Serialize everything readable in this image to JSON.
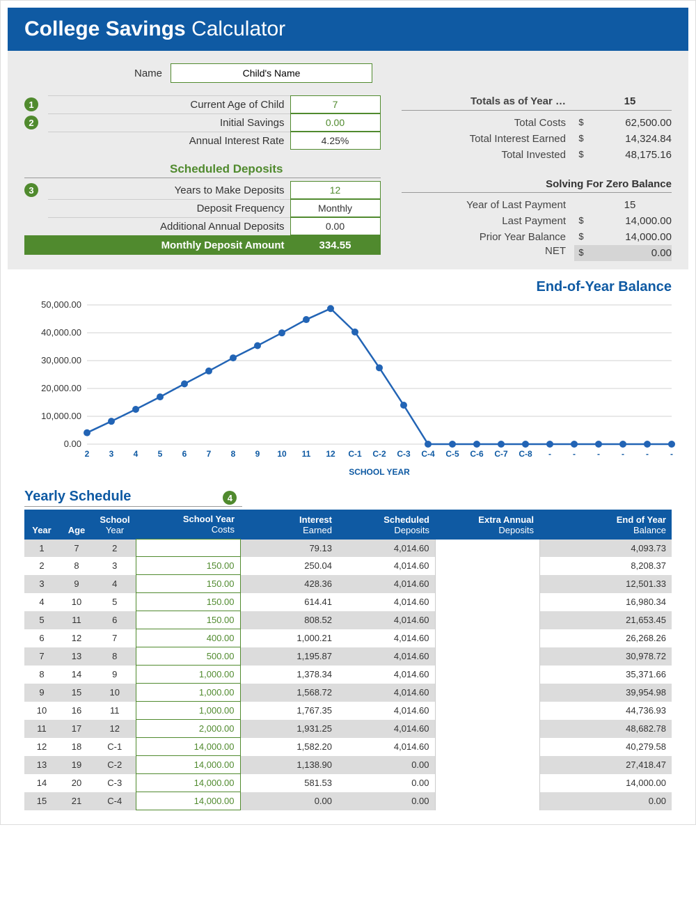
{
  "header": {
    "title_bold": "College Savings",
    "title_light": " Calculator"
  },
  "name": {
    "label": "Name",
    "value": "Child's Name"
  },
  "inputs": {
    "current_age": {
      "badge": "1",
      "label": "Current Age of Child",
      "value": "7"
    },
    "initial": {
      "badge": "2",
      "label": "Initial Savings",
      "value": "0.00"
    },
    "rate": {
      "label": "Annual Interest Rate",
      "value": "4.25%"
    }
  },
  "deposits": {
    "title": "Scheduled Deposits",
    "badge": "3",
    "years": {
      "label": "Years to Make Deposits",
      "value": "12"
    },
    "freq": {
      "label": "Deposit Frequency",
      "value": "Monthly"
    },
    "additional": {
      "label": "Additional Annual Deposits",
      "value": "0.00"
    },
    "monthly": {
      "label": "Monthly Deposit Amount",
      "value": "334.55"
    }
  },
  "totals": {
    "head_label": "Totals as of Year …",
    "head_val": "15",
    "rows": [
      {
        "label": "Total Costs",
        "cur": "$",
        "val": "62,500.00"
      },
      {
        "label": "Total Interest Earned",
        "cur": "$",
        "val": "14,324.84"
      },
      {
        "label": "Total Invested",
        "cur": "$",
        "val": "48,175.16"
      }
    ]
  },
  "solving": {
    "title": "Solving For Zero Balance",
    "rows": [
      {
        "label": "Year of Last Payment",
        "cur": "",
        "val": "15"
      },
      {
        "label": "Last Payment",
        "cur": "$",
        "val": "14,000.00"
      },
      {
        "label": "Prior Year Balance",
        "cur": "$",
        "val": "14,000.00"
      }
    ],
    "net": {
      "label": "NET",
      "cur": "$",
      "val": "0.00"
    }
  },
  "chart": {
    "title": "End-of-Year Balance",
    "xlabel": "SCHOOL YEAR",
    "categories": [
      "2",
      "3",
      "4",
      "5",
      "6",
      "7",
      "8",
      "9",
      "10",
      "11",
      "12",
      "C-1",
      "C-2",
      "C-3",
      "C-4",
      "C-5",
      "C-6",
      "C-7",
      "C-8",
      "-",
      "-",
      "-",
      "-",
      "-",
      "-"
    ],
    "values": [
      4093.73,
      8208.37,
      12501.33,
      16980.34,
      21653.45,
      26268.26,
      30978.72,
      35371.66,
      39954.98,
      44736.93,
      48682.78,
      40279.58,
      27418.47,
      14000.0,
      0,
      0,
      0,
      0,
      0,
      0,
      0,
      0,
      0,
      0,
      0
    ],
    "ylim": [
      0,
      50000
    ],
    "yticks": [
      0,
      10000,
      20000,
      30000,
      40000,
      50000
    ],
    "yticklabels": [
      "0.00",
      "10,000.00",
      "20,000.00",
      "30,000.00",
      "40,000.00",
      "50,000.00"
    ],
    "line_color": "#2264b5",
    "marker_color": "#2264b5",
    "grid_color": "#d0d0d0",
    "xlabel_color": "#0f5aa3"
  },
  "schedule": {
    "title": "Yearly Schedule",
    "badge": "4",
    "columns": [
      {
        "l1": "Year",
        "l2": ""
      },
      {
        "l1": "Age",
        "l2": ""
      },
      {
        "l1": "School",
        "l2": "Year"
      },
      {
        "l1": "School Year",
        "l2": "Costs"
      },
      {
        "l1": "Interest",
        "l2": "Earned"
      },
      {
        "l1": "Scheduled",
        "l2": "Deposits"
      },
      {
        "l1": "Extra Annual",
        "l2": "Deposits"
      },
      {
        "l1": "End of Year",
        "l2": "Balance"
      }
    ],
    "rows": [
      {
        "year": "1",
        "age": "7",
        "sy": "2",
        "cost": "",
        "int": "79.13",
        "sched": "4,014.60",
        "extra": "",
        "bal": "4,093.73"
      },
      {
        "year": "2",
        "age": "8",
        "sy": "3",
        "cost": "150.00",
        "int": "250.04",
        "sched": "4,014.60",
        "extra": "",
        "bal": "8,208.37"
      },
      {
        "year": "3",
        "age": "9",
        "sy": "4",
        "cost": "150.00",
        "int": "428.36",
        "sched": "4,014.60",
        "extra": "",
        "bal": "12,501.33"
      },
      {
        "year": "4",
        "age": "10",
        "sy": "5",
        "cost": "150.00",
        "int": "614.41",
        "sched": "4,014.60",
        "extra": "",
        "bal": "16,980.34"
      },
      {
        "year": "5",
        "age": "11",
        "sy": "6",
        "cost": "150.00",
        "int": "808.52",
        "sched": "4,014.60",
        "extra": "",
        "bal": "21,653.45"
      },
      {
        "year": "6",
        "age": "12",
        "sy": "7",
        "cost": "400.00",
        "int": "1,000.21",
        "sched": "4,014.60",
        "extra": "",
        "bal": "26,268.26"
      },
      {
        "year": "7",
        "age": "13",
        "sy": "8",
        "cost": "500.00",
        "int": "1,195.87",
        "sched": "4,014.60",
        "extra": "",
        "bal": "30,978.72"
      },
      {
        "year": "8",
        "age": "14",
        "sy": "9",
        "cost": "1,000.00",
        "int": "1,378.34",
        "sched": "4,014.60",
        "extra": "",
        "bal": "35,371.66"
      },
      {
        "year": "9",
        "age": "15",
        "sy": "10",
        "cost": "1,000.00",
        "int": "1,568.72",
        "sched": "4,014.60",
        "extra": "",
        "bal": "39,954.98"
      },
      {
        "year": "10",
        "age": "16",
        "sy": "11",
        "cost": "1,000.00",
        "int": "1,767.35",
        "sched": "4,014.60",
        "extra": "",
        "bal": "44,736.93"
      },
      {
        "year": "11",
        "age": "17",
        "sy": "12",
        "cost": "2,000.00",
        "int": "1,931.25",
        "sched": "4,014.60",
        "extra": "",
        "bal": "48,682.78"
      },
      {
        "year": "12",
        "age": "18",
        "sy": "C-1",
        "cost": "14,000.00",
        "int": "1,582.20",
        "sched": "4,014.60",
        "extra": "",
        "bal": "40,279.58"
      },
      {
        "year": "13",
        "age": "19",
        "sy": "C-2",
        "cost": "14,000.00",
        "int": "1,138.90",
        "sched": "0.00",
        "extra": "",
        "bal": "27,418.47"
      },
      {
        "year": "14",
        "age": "20",
        "sy": "C-3",
        "cost": "14,000.00",
        "int": "581.53",
        "sched": "0.00",
        "extra": "",
        "bal": "14,000.00"
      },
      {
        "year": "15",
        "age": "21",
        "sy": "C-4",
        "cost": "14,000.00",
        "int": "0.00",
        "sched": "0.00",
        "extra": "",
        "bal": "0.00"
      }
    ]
  }
}
